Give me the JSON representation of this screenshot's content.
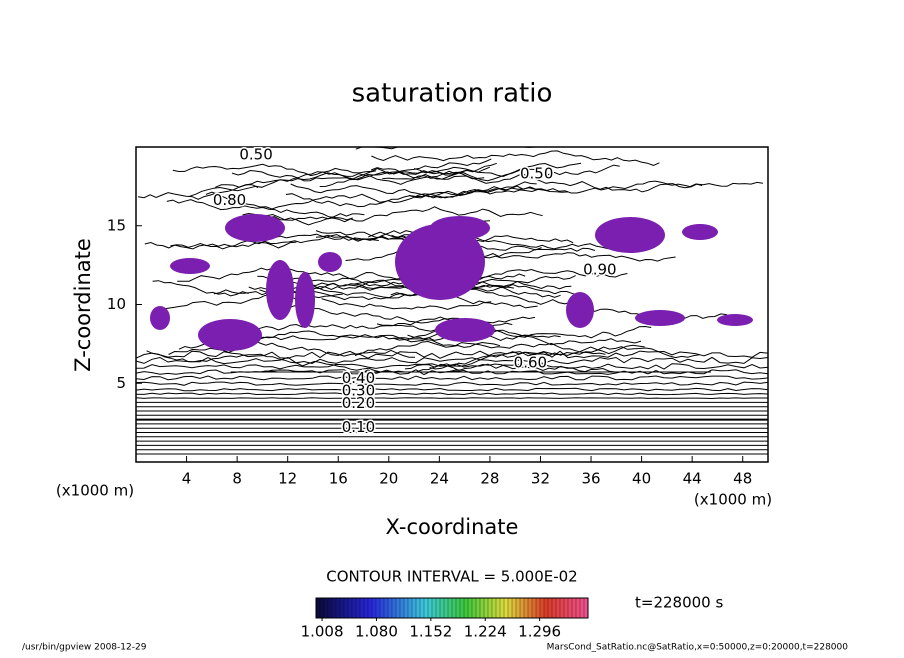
{
  "chart_data": {
    "type": "contour",
    "title": "saturation ratio",
    "xlabel": "X-coordinate",
    "ylabel": "Z-coordinate",
    "x_unit": "(x1000 m)",
    "xlim": [
      0,
      50
    ],
    "ylim": [
      0,
      20
    ],
    "xticks": [
      4,
      8,
      12,
      16,
      20,
      24,
      28,
      32,
      36,
      40,
      44,
      48
    ],
    "yticks": [
      5,
      10,
      15
    ],
    "shade_color": "#7a1fb0",
    "contour_labels": [
      {
        "label": "0.50",
        "x": 9.5,
        "z": 19.5
      },
      {
        "label": "0.50",
        "x": 31.7,
        "z": 18.3
      },
      {
        "label": "0.80",
        "x": 7.4,
        "z": 16.6
      },
      {
        "label": "0.90",
        "x": 36.7,
        "z": 12.2
      },
      {
        "label": "0.60",
        "x": 31.2,
        "z": 6.3
      },
      {
        "label": "0.40",
        "x": 17.6,
        "z": 5.3
      },
      {
        "label": "0.30",
        "x": 17.6,
        "z": 4.5
      },
      {
        "label": "0.20",
        "x": 17.6,
        "z": 3.7
      },
      {
        "label": "0.10",
        "x": 17.6,
        "z": 2.2
      }
    ],
    "contour_interval_text": "CONTOUR INTERVAL = 5.000E-02",
    "colorbar_lim": [
      1.0,
      1.36
    ],
    "colorbar_ticks": [
      1.008,
      {
        "value": 1.08,
        "label": "1.080"
      },
      1.152,
      1.224,
      1.296
    ],
    "time_label": "t=228000 s",
    "footer_left": "/usr/bin/gpview  2008-12-29",
    "footer_right": "MarsCond_SatRatio.nc@SatRatio,x=0:50000,z=0:20000,t=228000"
  }
}
